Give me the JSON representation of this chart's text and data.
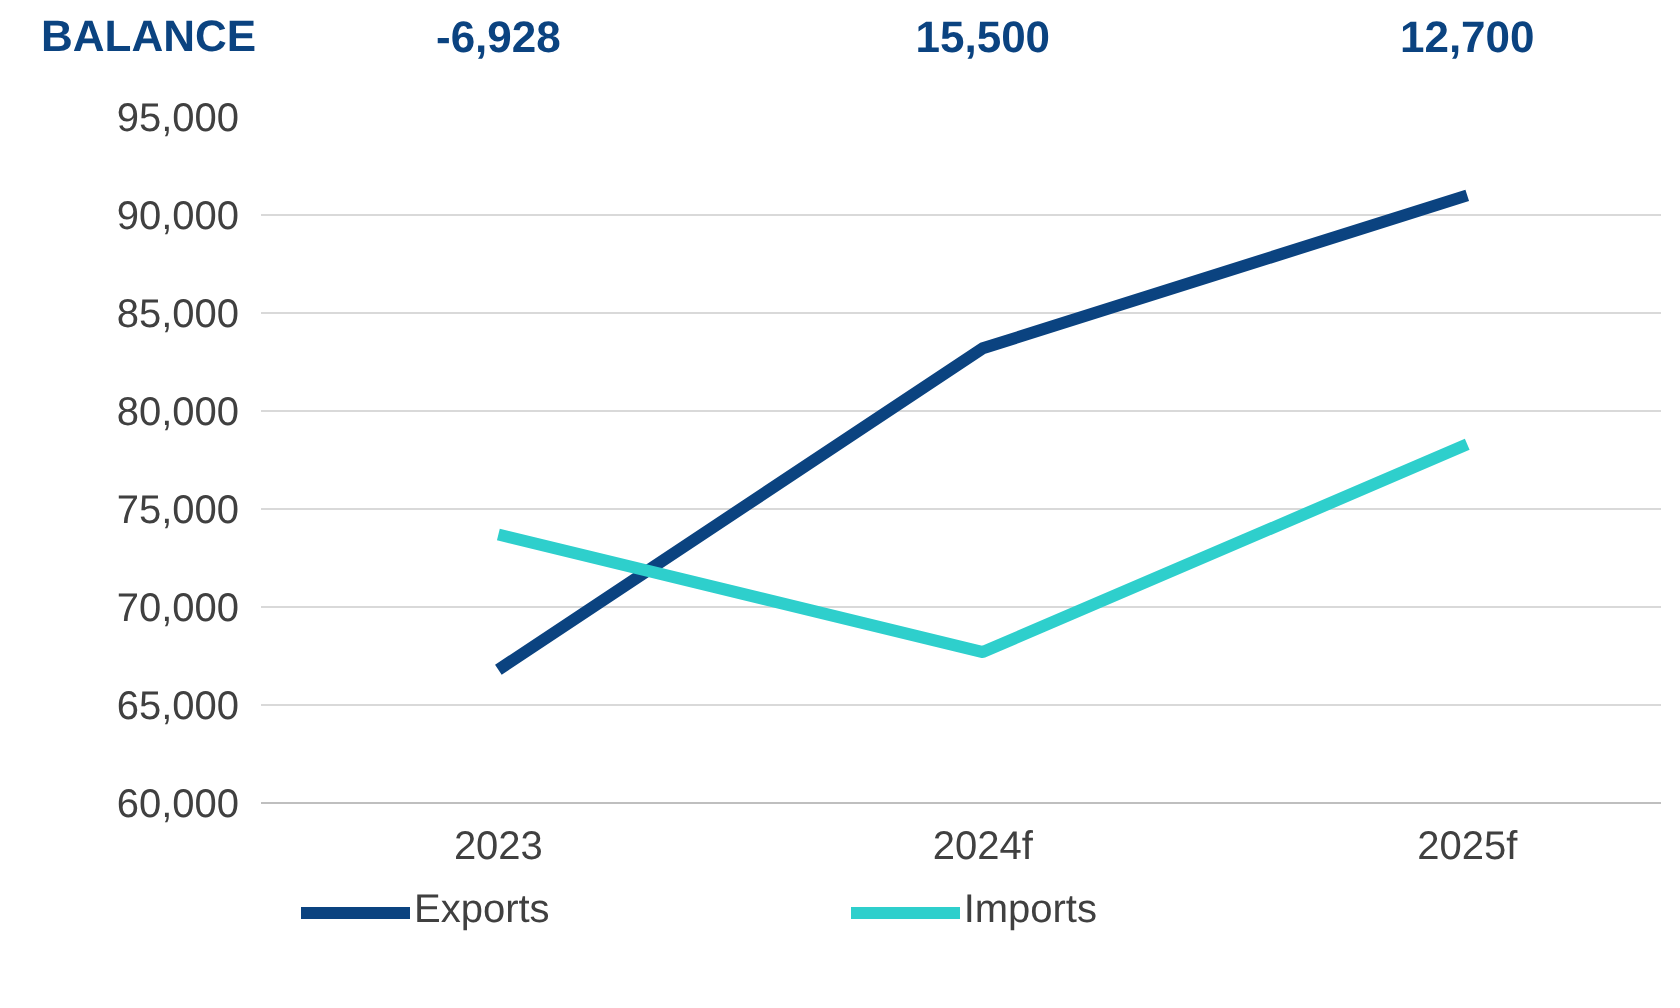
{
  "chart_data": {
    "type": "line",
    "categories": [
      "2023",
      "2024f",
      "2025f"
    ],
    "series": [
      {
        "name": "Exports",
        "color": "#0b4380",
        "values": [
          66800,
          83200,
          91000
        ]
      },
      {
        "name": "Imports",
        "color": "#2ecfcc",
        "values": [
          73700,
          67700,
          78300
        ]
      }
    ],
    "ylim": [
      60000,
      95000
    ],
    "yticks": [
      {
        "value": 60000,
        "label": "60,000"
      },
      {
        "value": 65000,
        "label": "65,000"
      },
      {
        "value": 70000,
        "label": "70,000"
      },
      {
        "value": 75000,
        "label": "75,000"
      },
      {
        "value": 80000,
        "label": "80,000"
      },
      {
        "value": 85000,
        "label": "85,000"
      },
      {
        "value": 90000,
        "label": "90,000"
      },
      {
        "value": 95000,
        "label": "95,000"
      }
    ],
    "grid": "y",
    "legend": "bottom",
    "marker": "none",
    "line_style": "solid",
    "annotations": [
      "BALANCE",
      "-6,928",
      "15,500",
      "12,700"
    ]
  }
}
